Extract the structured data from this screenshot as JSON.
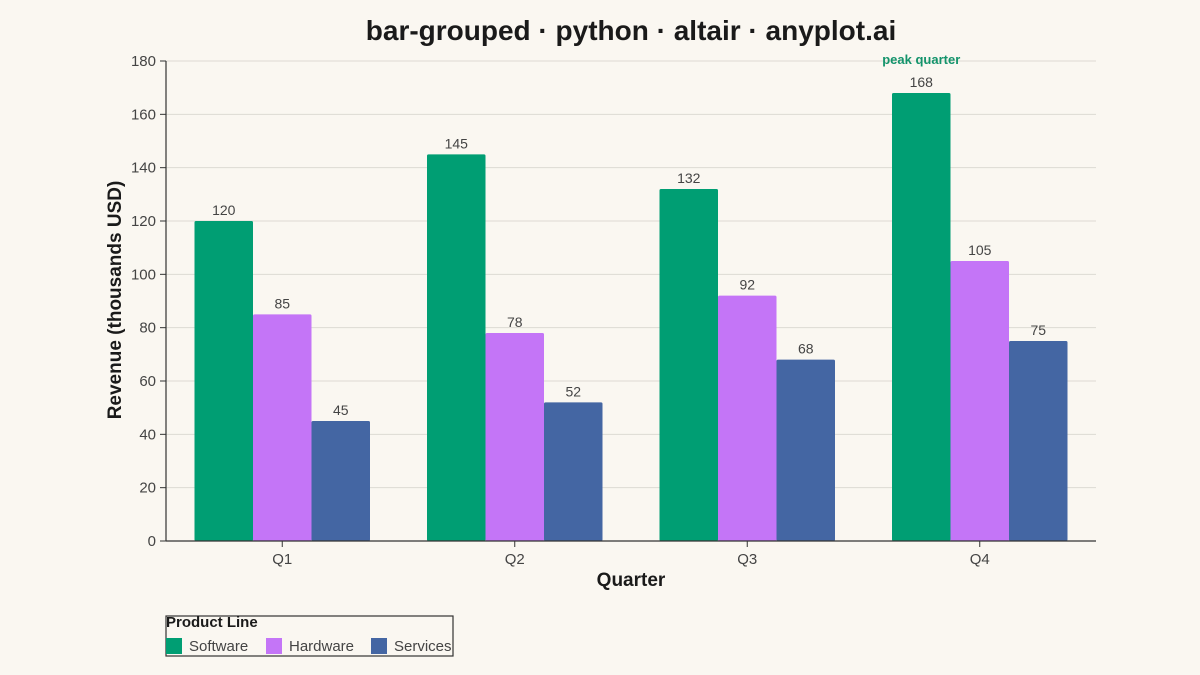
{
  "chart_data": {
    "type": "bar",
    "title": "bar-grouped · python · altair · anyplot.ai",
    "xlabel": "Quarter",
    "ylabel": "Revenue (thousands USD)",
    "ylim": [
      0,
      180
    ],
    "yticks": [
      0,
      20,
      40,
      60,
      80,
      100,
      120,
      140,
      160,
      180
    ],
    "grid": true,
    "categories": [
      "Q1",
      "Q2",
      "Q3",
      "Q4"
    ],
    "series": [
      {
        "name": "Software",
        "color": "#009E73",
        "values": [
          120,
          145,
          132,
          168
        ]
      },
      {
        "name": "Hardware",
        "color": "#C475F7",
        "values": [
          85,
          78,
          92,
          105
        ]
      },
      {
        "name": "Services",
        "color": "#4466A3",
        "values": [
          45,
          52,
          68,
          75
        ]
      }
    ],
    "legend": {
      "title": "Product Line",
      "placement": "bottom-left"
    },
    "annotations": [
      {
        "text": "peak quarter",
        "category": "Q4",
        "series": "Software",
        "color": "#13936B"
      }
    ]
  }
}
